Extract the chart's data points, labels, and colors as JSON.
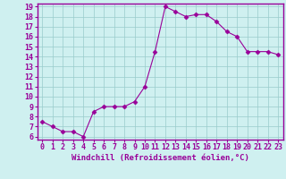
{
  "x": [
    0,
    1,
    2,
    3,
    4,
    5,
    6,
    7,
    8,
    9,
    10,
    11,
    12,
    13,
    14,
    15,
    16,
    17,
    18,
    19,
    20,
    21,
    22,
    23
  ],
  "y": [
    7.5,
    7.0,
    6.5,
    6.5,
    6.0,
    8.5,
    9.0,
    9.0,
    9.0,
    9.5,
    11.0,
    14.5,
    19.0,
    18.5,
    18.0,
    18.2,
    18.2,
    17.5,
    16.5,
    16.0,
    14.5,
    14.5,
    14.5,
    14.2
  ],
  "line_color": "#990099",
  "marker": "D",
  "marker_size": 2.5,
  "bg_color": "#cff0f0",
  "grid_color": "#99cccc",
  "xlabel": "Windchill (Refroidissement éolien,°C)",
  "ylim_min": 6,
  "ylim_max": 19,
  "xlim_min": -0.5,
  "xlim_max": 23.5,
  "yticks": [
    6,
    7,
    8,
    9,
    10,
    11,
    12,
    13,
    14,
    15,
    16,
    17,
    18,
    19
  ],
  "xticks": [
    0,
    1,
    2,
    3,
    4,
    5,
    6,
    7,
    8,
    9,
    10,
    11,
    12,
    13,
    14,
    15,
    16,
    17,
    18,
    19,
    20,
    21,
    22,
    23
  ],
  "spine_color": "#990099",
  "tick_color": "#990099",
  "label_color": "#990099",
  "tick_fontsize": 6,
  "xlabel_fontsize": 6.5
}
